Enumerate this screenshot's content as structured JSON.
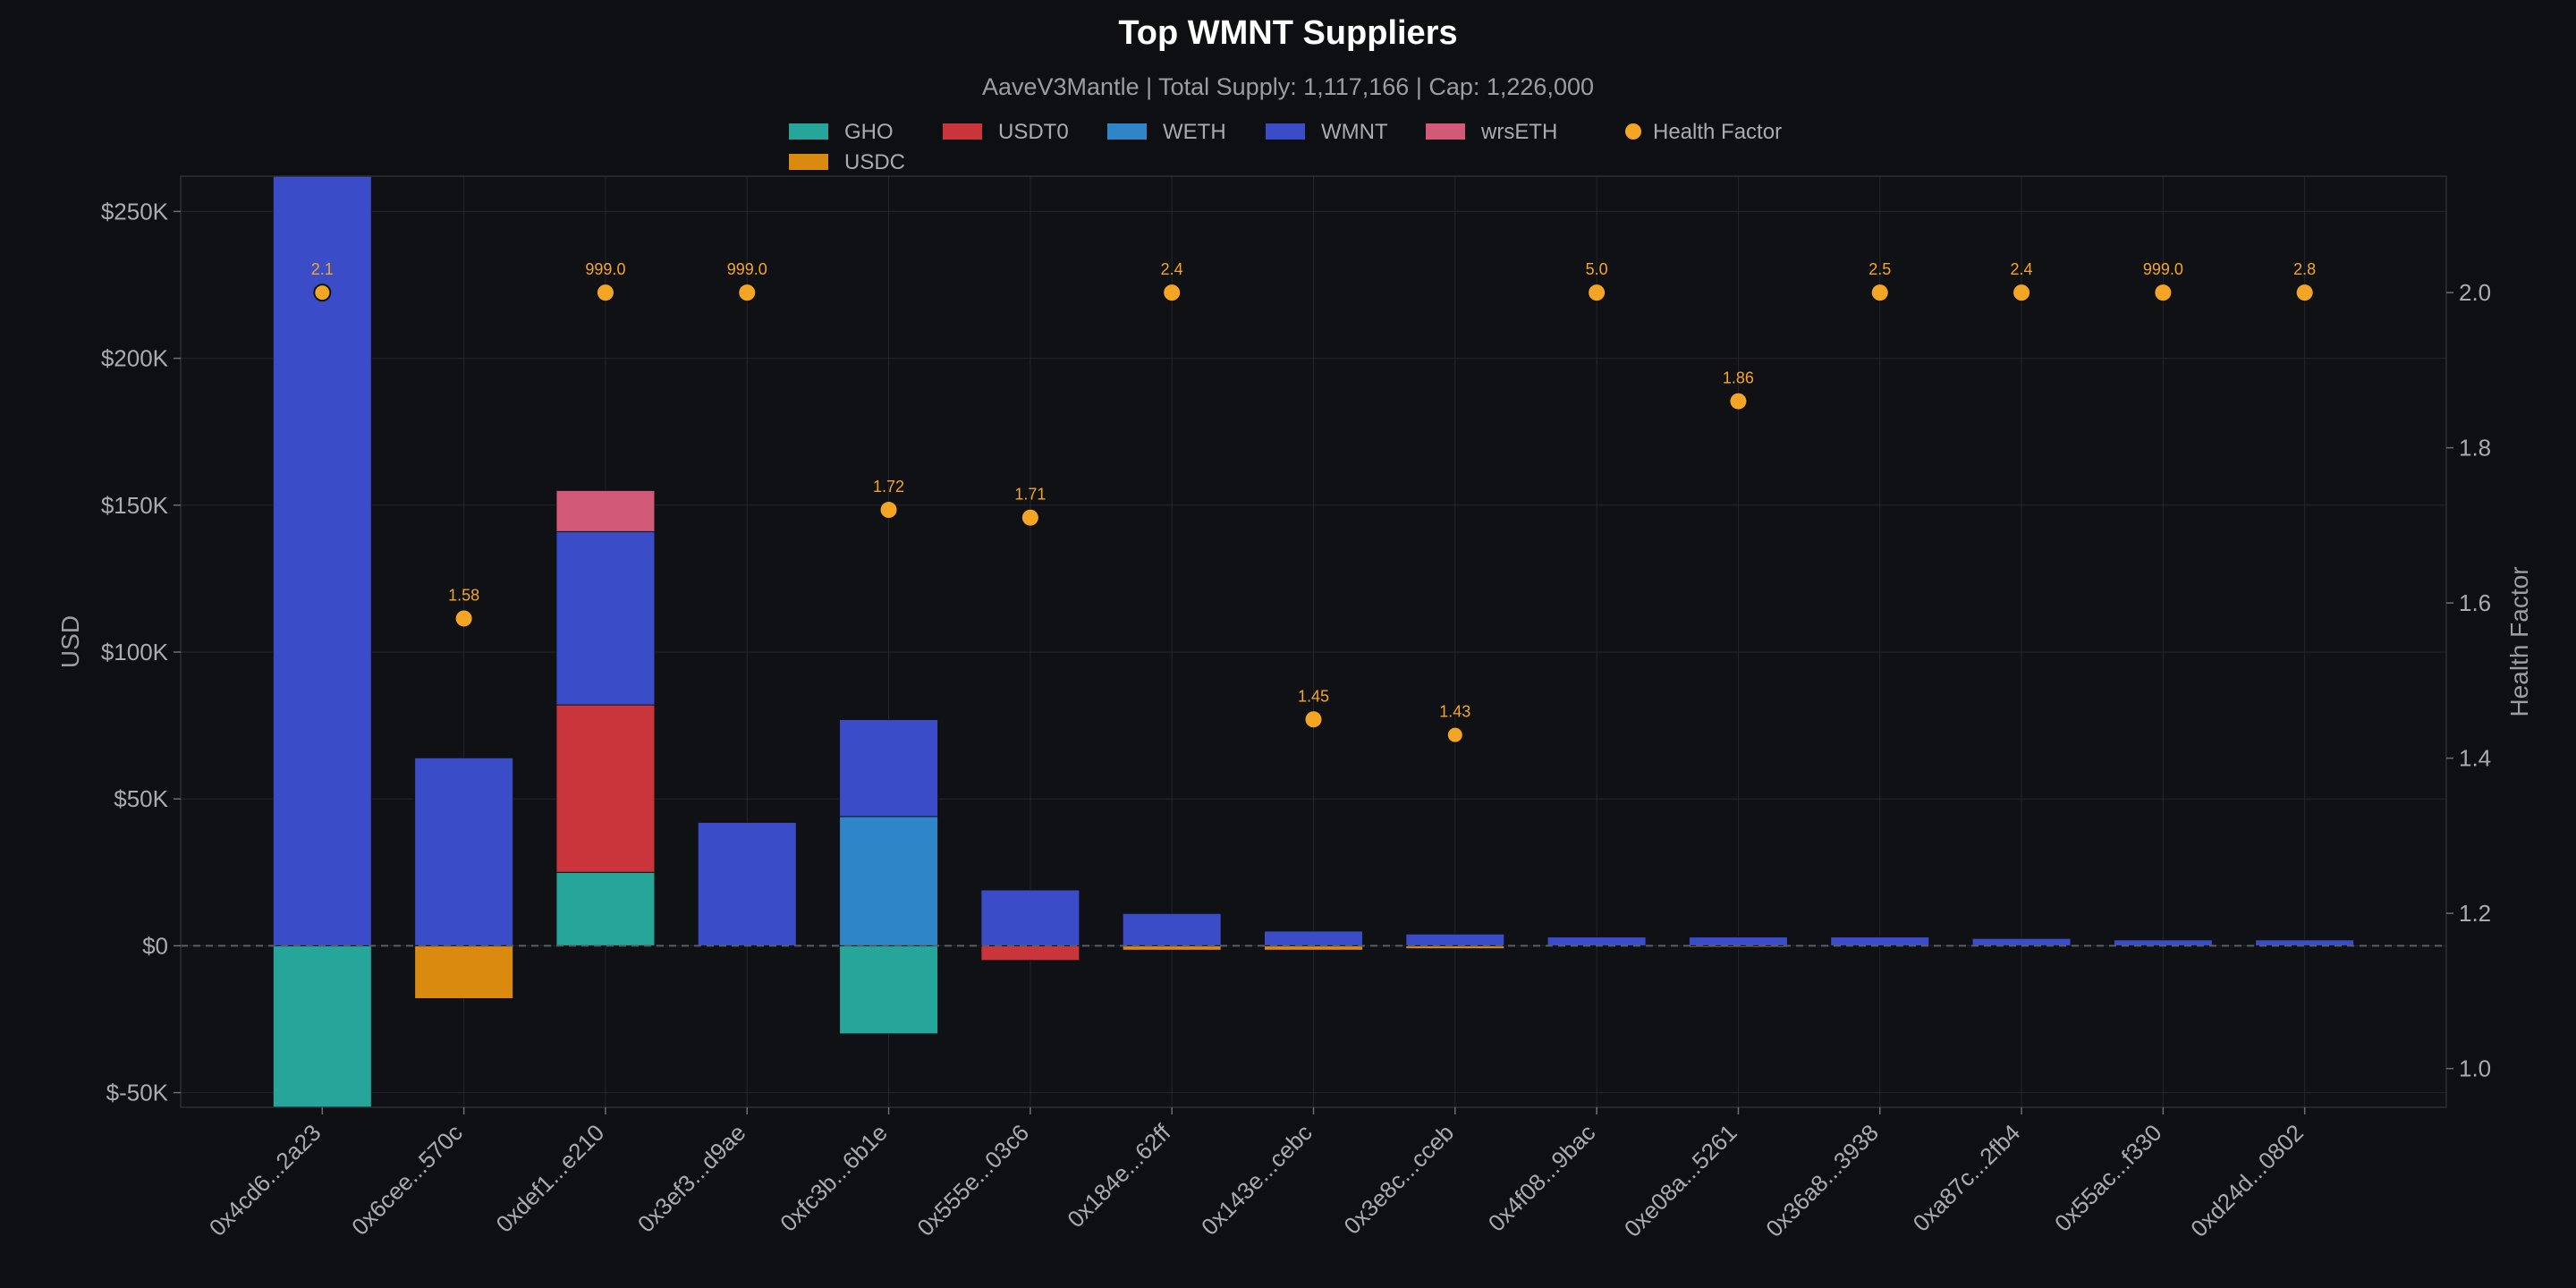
{
  "chart_data": {
    "type": "bar",
    "title": "Top WMNT Suppliers",
    "subtitle": "AaveV3Mantle | Total Supply: 1,117,166 | Cap: 1,226,000",
    "ylabel": "USD",
    "y2label": "Health Factor",
    "ylim": [
      -55000,
      262000
    ],
    "y2lim": [
      0.95,
      2.15
    ],
    "yticks": [
      -50000,
      0,
      50000,
      100000,
      150000,
      200000,
      250000
    ],
    "ytick_labels": [
      "$-50K",
      "$0",
      "$50K",
      "$100K",
      "$150K",
      "$200K",
      "$250K"
    ],
    "y2ticks": [
      1.0,
      1.2,
      1.4,
      1.6,
      1.8,
      2.0
    ],
    "y2tick_labels": [
      "1.0",
      "1.2",
      "1.4",
      "1.6",
      "1.8",
      "2.0"
    ],
    "grid": true,
    "stacked": true,
    "legend_position": "top-center",
    "categories": [
      "0x4cd6...2a23",
      "0x6cee...570c",
      "0xdef1...e210",
      "0x3ef3...d9ae",
      "0xfc3b...6b1e",
      "0x555e...03c6",
      "0x184e...62ff",
      "0x143e...cebc",
      "0x3e8c...cceb",
      "0x4f08...9bac",
      "0xe08a...5261",
      "0x36a8...3938",
      "0xa87c...2fb4",
      "0x55ac...f330",
      "0xd24d...0802"
    ],
    "series": [
      {
        "name": "GHO",
        "color": "#26a69a",
        "values": [
          -55000,
          0,
          25000,
          0,
          -30000,
          0,
          0,
          0,
          0,
          0,
          0,
          0,
          0,
          0,
          0
        ]
      },
      {
        "name": "USDT0",
        "color": "#c9353b",
        "values": [
          0,
          0,
          57000,
          0,
          0,
          -5000,
          0,
          0,
          0,
          0,
          0,
          0,
          0,
          0,
          0
        ]
      },
      {
        "name": "WETH",
        "color": "#2e86c8",
        "values": [
          0,
          0,
          0,
          0,
          44000,
          0,
          0,
          0,
          0,
          0,
          0,
          0,
          0,
          0,
          0
        ]
      },
      {
        "name": "WMNT",
        "color": "#3b4cc8",
        "values": [
          262000,
          64000,
          59000,
          42000,
          33000,
          19000,
          11000,
          5000,
          4000,
          3000,
          3000,
          3000,
          2500,
          2000,
          2000
        ]
      },
      {
        "name": "wrsETH",
        "color": "#d25a78",
        "values": [
          0,
          0,
          14000,
          0,
          0,
          0,
          0,
          0,
          0,
          0,
          0,
          0,
          0,
          0,
          0
        ]
      },
      {
        "name": "USDC",
        "color": "#d98a0f",
        "values": [
          0,
          -18000,
          0,
          0,
          0,
          0,
          -1500,
          -1500,
          -1000,
          0,
          -500,
          0,
          0,
          0,
          0
        ]
      }
    ],
    "health_factor": {
      "name": "Health Factor",
      "color": "#f5a524",
      "plotted": [
        2.0,
        1.58,
        2.0,
        2.0,
        1.72,
        1.71,
        2.0,
        1.45,
        1.43,
        2.0,
        1.86,
        2.0,
        2.0,
        2.0,
        2.0
      ],
      "labels": [
        "2.1",
        "1.58",
        "999.0",
        "999.0",
        "1.72",
        "1.71",
        "2.4",
        "1.45",
        "1.43",
        "5.0",
        "1.86",
        "2.5",
        "2.4",
        "999.0",
        "2.8"
      ],
      "highlighted": [
        true,
        false,
        false,
        false,
        false,
        false,
        false,
        false,
        true,
        false,
        false,
        false,
        false,
        false,
        false
      ]
    },
    "legend_order": [
      "GHO",
      "USDT0",
      "WETH",
      "WMNT",
      "wrsETH",
      "Health Factor",
      "USDC"
    ],
    "colors": {
      "background": "#0d0f12",
      "plot_bg": "#0f1115",
      "grid": "#23262c",
      "zero_line": "#5a5d63"
    }
  }
}
